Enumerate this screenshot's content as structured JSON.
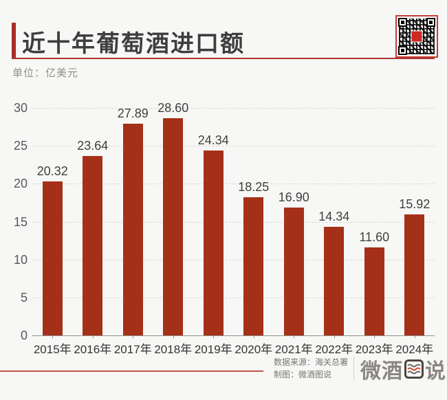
{
  "header": {
    "title": "近十年葡萄酒进口额",
    "accent_color": "#a82e29"
  },
  "unit_label": "单位：亿美元",
  "chart_data": {
    "type": "bar",
    "title": "近十年葡萄酒进口额",
    "unit": "亿美元",
    "categories": [
      "2015年",
      "2016年",
      "2017年",
      "2018年",
      "2019年",
      "2020年",
      "2021年",
      "2022年",
      "2023年",
      "2024年"
    ],
    "values": [
      20.32,
      23.64,
      27.89,
      28.6,
      24.34,
      18.25,
      16.9,
      14.34,
      11.6,
      15.92
    ],
    "value_labels": [
      "20.32",
      "23.64",
      "27.89",
      "28.60",
      "24.34",
      "18.25",
      "16.90",
      "14.34",
      "11.60",
      "15.92"
    ],
    "ylim": [
      0,
      30
    ],
    "yticks": [
      0,
      5,
      10,
      15,
      20,
      25,
      30
    ],
    "grid": "dashed-horizontal",
    "legend": "none",
    "bar_color": "#a53018",
    "xlabel": "",
    "ylabel": ""
  },
  "qr": {
    "icon": "qr-code-icon",
    "frame_color": "#c13b34",
    "center_color": "#cc2922"
  },
  "footer": {
    "source_label": "数据来源：海关总署",
    "credit_label": "制图：微酒图说",
    "logo": {
      "text_left": "微酒",
      "text_right": "说",
      "icon": "chart-waves-icon",
      "wave_accent_color": "#d8402a"
    }
  }
}
